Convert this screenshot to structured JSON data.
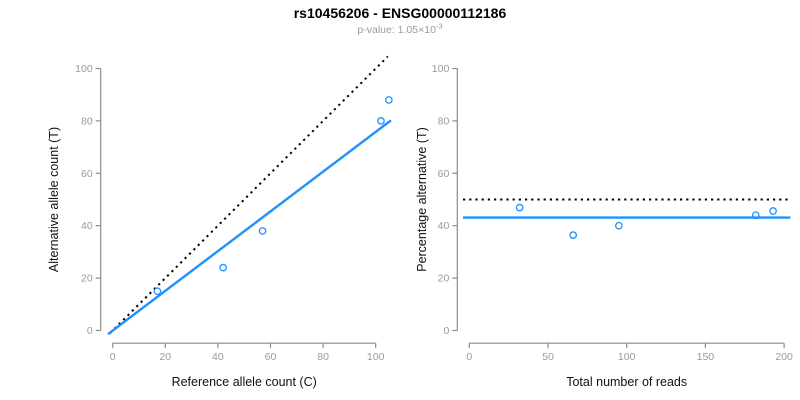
{
  "header": {
    "title": "rs10456206 - ENSG00000112186",
    "subtitle_base": "p-value: 1.05×10",
    "subtitle_exponent": "-3"
  },
  "colors": {
    "accent_blue": "#1E90FF",
    "line_black": "#000000",
    "axis_gray": "#8c8c8c",
    "tick_label_gray": "#9a9a9a",
    "axis_title_color": "#111111",
    "background": "#ffffff"
  },
  "chart_data": [
    {
      "type": "scatter",
      "name": "allele-counts-scatter",
      "xlabel": "Reference allele count (C)",
      "ylabel": "Alternative allele count (T)",
      "xlim": [
        0,
        106
      ],
      "ylim": [
        0,
        106
      ],
      "xticks": [
        0,
        20,
        40,
        60,
        80,
        100
      ],
      "yticks": [
        0,
        20,
        40,
        60,
        80,
        100
      ],
      "grid": false,
      "legend": "none",
      "points": [
        [
          17,
          15
        ],
        [
          42,
          24
        ],
        [
          57,
          38
        ],
        [
          102,
          80
        ],
        [
          105,
          88
        ]
      ],
      "lines": [
        {
          "name": "identity-line",
          "style": "dotted",
          "color": "#000000",
          "from": [
            -1,
            -1
          ],
          "to": [
            104.6,
            104.6
          ]
        },
        {
          "name": "fit-line",
          "style": "solid",
          "color": "#1E90FF",
          "from": [
            -1.8,
            -1.4
          ],
          "to": [
            105.8,
            80.2
          ]
        }
      ]
    },
    {
      "type": "scatter",
      "name": "percentage-vs-reads-scatter",
      "xlabel": "Total number of reads",
      "ylabel": "Percentage alternative (T)",
      "xlim": [
        0,
        204
      ],
      "ylim": [
        0,
        106
      ],
      "xticks": [
        0,
        50,
        100,
        150,
        200
      ],
      "yticks": [
        0,
        20,
        40,
        60,
        80,
        100
      ],
      "grid": false,
      "legend": "none",
      "points": [
        [
          32,
          46.9
        ],
        [
          66,
          36.4
        ],
        [
          95,
          40
        ],
        [
          182,
          44
        ],
        [
          193,
          45.6
        ]
      ],
      "lines": [
        {
          "name": "fifty-percent-line",
          "style": "dotted",
          "color": "#000000",
          "from": [
            -4,
            50
          ],
          "to": [
            204,
            50
          ]
        },
        {
          "name": "mean-percentage-line",
          "style": "solid",
          "color": "#1E90FF",
          "from": [
            -4,
            43.1
          ],
          "to": [
            204,
            43.1
          ]
        }
      ]
    }
  ]
}
